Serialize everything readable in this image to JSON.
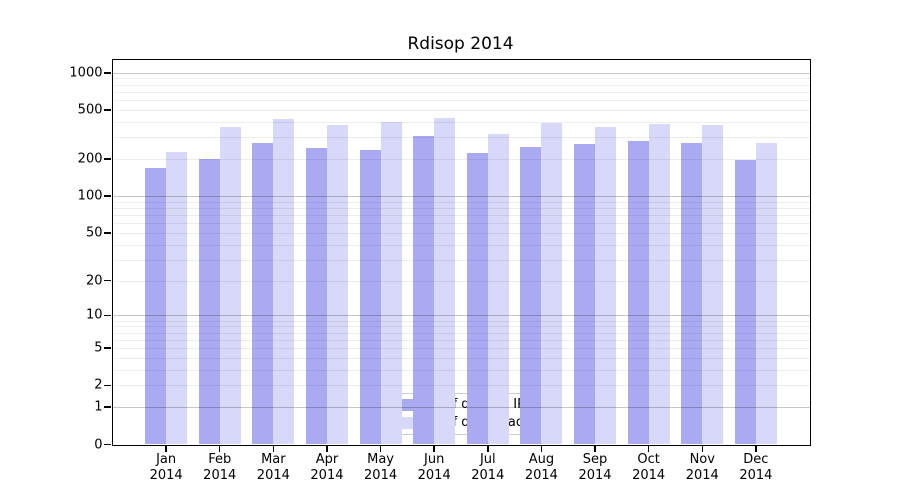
{
  "title": "Rdisop 2014",
  "chart_data": {
    "type": "bar",
    "title": "Rdisop 2014",
    "categories": [
      "Jan 2014",
      "Feb 2014",
      "Mar 2014",
      "Apr 2014",
      "May 2014",
      "Jun 2014",
      "Jul 2014",
      "Aug 2014",
      "Sep 2014",
      "Oct 2014",
      "Nov 2014",
      "Dec 2014"
    ],
    "series": [
      {
        "name": "Nb of distinct IPs",
        "key": "distinct-ips",
        "color": "#aaaaf2",
        "values": [
          168,
          200,
          268,
          246,
          236,
          308,
          224,
          251,
          265,
          280,
          268,
          196
        ]
      },
      {
        "name": "Nb of downloads",
        "key": "downloads",
        "color": "#d8d8f8",
        "values": [
          229,
          364,
          420,
          378,
          402,
          433,
          322,
          390,
          362,
          383,
          378,
          270
        ]
      }
    ],
    "xlabel": "",
    "ylabel": "",
    "y_scale": "log1p",
    "y_ticks": [
      0,
      1,
      2,
      5,
      10,
      20,
      50,
      100,
      200,
      500,
      1000
    ],
    "ylim": [
      0,
      1280
    ],
    "grid": true,
    "legend_position": "lower-center",
    "colors": {
      "axis": "#000000",
      "grid_major": "rgba(0,0,0,0.22)",
      "grid_minor": "rgba(0,0,0,0.07)",
      "legend_bg": "rgba(255,255,255,0.8)",
      "legend_border": "#cccccc"
    }
  }
}
